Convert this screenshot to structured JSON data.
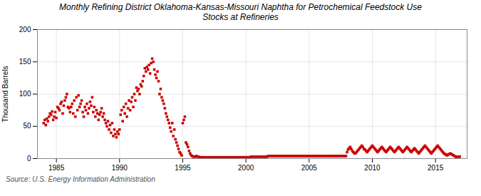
{
  "chart_data": {
    "type": "scatter",
    "title": "Monthly Refining District Oklahoma-Kansas-Missouri Naphtha for Petrochemical Feedstock Use\nStocks at Refineries",
    "ylabel": "Thousand Barrels",
    "source": "Source: U.S. Energy Information Administration",
    "color": "#cc0000",
    "marker": "square",
    "grid": true,
    "xlim": [
      1983.5,
      2017.5
    ],
    "xticks": [
      1985,
      1990,
      1995,
      2000,
      2005,
      2010,
      2015
    ],
    "ylim": [
      0,
      200
    ],
    "yticks": [
      0,
      50,
      100,
      150,
      200
    ],
    "x": [
      1984,
      1984.0833333333,
      1984.1666666667,
      1984.25,
      1984.3333333333,
      1984.4166666667,
      1984.5,
      1984.5833333333,
      1984.6666666667,
      1984.75,
      1984.8333333333,
      1984.9166666667,
      1985,
      1985.0833333333,
      1985.1666666667,
      1985.25,
      1985.3333333333,
      1985.4166666667,
      1985.5,
      1985.5833333333,
      1985.6666666667,
      1985.75,
      1985.8333333333,
      1985.9166666667,
      1986,
      1986.0833333333,
      1986.1666666667,
      1986.25,
      1986.3333333333,
      1986.4166666667,
      1986.5,
      1986.5833333333,
      1986.6666666667,
      1986.75,
      1986.8333333333,
      1986.9166666667,
      1987,
      1987.0833333333,
      1987.1666666667,
      1987.25,
      1987.3333333333,
      1987.4166666667,
      1987.5,
      1987.5833333333,
      1987.6666666667,
      1987.75,
      1987.8333333333,
      1987.9166666667,
      1988,
      1988.0833333333,
      1988.1666666667,
      1988.25,
      1988.3333333333,
      1988.4166666667,
      1988.5,
      1988.5833333333,
      1988.6666666667,
      1988.75,
      1988.8333333333,
      1988.9166666667,
      1989,
      1989.0833333333,
      1989.1666666667,
      1989.25,
      1989.3333333333,
      1989.4166666667,
      1989.5,
      1989.5833333333,
      1989.6666666667,
      1989.75,
      1989.8333333333,
      1989.9166666667,
      1990,
      1990.0833333333,
      1990.1666666667,
      1990.25,
      1990.3333333333,
      1990.4166666667,
      1990.5,
      1990.5833333333,
      1990.6666666667,
      1990.75,
      1990.8333333333,
      1990.9166666667,
      1991,
      1991.0833333333,
      1991.1666666667,
      1991.25,
      1991.3333333333,
      1991.4166666667,
      1991.5,
      1991.5833333333,
      1991.6666666667,
      1991.75,
      1991.8333333333,
      1991.9166666667,
      1992,
      1992.0833333333,
      1992.1666666667,
      1992.25,
      1992.3333333333,
      1992.4166666667,
      1992.5,
      1992.5833333333,
      1992.6666666667,
      1992.75,
      1992.8333333333,
      1992.9166666667,
      1993,
      1993.0833333333,
      1993.1666666667,
      1993.25,
      1993.3333333333,
      1993.4166666667,
      1993.5,
      1993.5833333333,
      1993.6666666667,
      1993.75,
      1993.8333333333,
      1993.9166666667,
      1994,
      1994.0833333333,
      1994.1666666667,
      1994.25,
      1994.3333333333,
      1994.4166666667,
      1994.5,
      1994.5833333333,
      1994.6666666667,
      1994.75,
      1994.8333333333,
      1994.9166666667,
      1995,
      1995.0833333333,
      1995.1666666667,
      1995.25,
      1995.3333333333,
      1995.4166666667,
      1995.5,
      1995.5833333333,
      1995.6666666667,
      1995.75,
      1995.8333333333,
      1995.9166666667,
      1996,
      1996.0833333333,
      1996.1666666667,
      1996.25,
      1996.3333333333,
      1996.4166666667,
      1996.5,
      1996.5833333333,
      1996.6666666667,
      1996.75,
      1996.8333333333,
      1996.9166666667,
      1997,
      1997.0833333333,
      1997.1666666667,
      1997.25,
      1997.3333333333,
      1997.4166666667,
      1997.5,
      1997.5833333333,
      1997.6666666667,
      1997.75,
      1997.8333333333,
      1997.9166666667,
      1998,
      1998.0833333333,
      1998.1666666667,
      1998.25,
      1998.3333333333,
      1998.4166666667,
      1998.5,
      1998.5833333333,
      1998.6666666667,
      1998.75,
      1998.8333333333,
      1998.9166666667,
      1999,
      1999.0833333333,
      1999.1666666667,
      1999.25,
      1999.3333333333,
      1999.4166666667,
      1999.5,
      1999.5833333333,
      1999.6666666667,
      1999.75,
      1999.8333333333,
      1999.9166666667,
      2000,
      2000.0833333333,
      2000.1666666667,
      2000.25,
      2000.3333333333,
      2000.4166666667,
      2000.5,
      2000.5833333333,
      2000.6666666667,
      2000.75,
      2000.8333333333,
      2000.9166666667,
      2001,
      2001.0833333333,
      2001.1666666667,
      2001.25,
      2001.3333333333,
      2001.4166666667,
      2001.5,
      2001.5833333333,
      2001.6666666667,
      2001.75,
      2001.8333333333,
      2001.9166666667,
      2002,
      2002.0833333333,
      2002.1666666667,
      2002.25,
      2002.3333333333,
      2002.4166666667,
      2002.5,
      2002.5833333333,
      2002.6666666667,
      2002.75,
      2002.8333333333,
      2002.9166666667,
      2003,
      2003.0833333333,
      2003.1666666667,
      2003.25,
      2003.3333333333,
      2003.4166666667,
      2003.5,
      2003.5833333333,
      2003.6666666667,
      2003.75,
      2003.8333333333,
      2003.9166666667,
      2004,
      2004.0833333333,
      2004.1666666667,
      2004.25,
      2004.3333333333,
      2004.4166666667,
      2004.5,
      2004.5833333333,
      2004.6666666667,
      2004.75,
      2004.8333333333,
      2004.9166666667,
      2005,
      2005.0833333333,
      2005.1666666667,
      2005.25,
      2005.3333333333,
      2005.4166666667,
      2005.5,
      2005.5833333333,
      2005.6666666667,
      2005.75,
      2005.8333333333,
      2005.9166666667,
      2006,
      2006.0833333333,
      2006.1666666667,
      2006.25,
      2006.3333333333,
      2006.4166666667,
      2006.5,
      2006.5833333333,
      2006.6666666667,
      2006.75,
      2006.8333333333,
      2006.9166666667,
      2007,
      2007.0833333333,
      2007.1666666667,
      2007.25,
      2007.3333333333,
      2007.4166666667,
      2007.5,
      2007.5833333333,
      2007.6666666667,
      2007.75,
      2007.8333333333,
      2007.9166666667,
      2008,
      2008.0833333333,
      2008.1666666667,
      2008.25,
      2008.3333333333,
      2008.4166666667,
      2008.5,
      2008.5833333333,
      2008.6666666667,
      2008.75,
      2008.8333333333,
      2008.9166666667,
      2009,
      2009.0833333333,
      2009.1666666667,
      2009.25,
      2009.3333333333,
      2009.4166666667,
      2009.5,
      2009.5833333333,
      2009.6666666667,
      2009.75,
      2009.8333333333,
      2009.9166666667,
      2010,
      2010.0833333333,
      2010.1666666667,
      2010.25,
      2010.3333333333,
      2010.4166666667,
      2010.5,
      2010.5833333333,
      2010.6666666667,
      2010.75,
      2010.8333333333,
      2010.9166666667,
      2011,
      2011.0833333333,
      2011.1666666667,
      2011.25,
      2011.3333333333,
      2011.4166666667,
      2011.5,
      2011.5833333333,
      2011.6666666667,
      2011.75,
      2011.8333333333,
      2011.9166666667,
      2012,
      2012.0833333333,
      2012.1666666667,
      2012.25,
      2012.3333333333,
      2012.4166666667,
      2012.5,
      2012.5833333333,
      2012.6666666667,
      2012.75,
      2012.8333333333,
      2012.9166666667,
      2013,
      2013.0833333333,
      2013.1666666667,
      2013.25,
      2013.3333333333,
      2013.4166666667,
      2013.5,
      2013.5833333333,
      2013.6666666667,
      2013.75,
      2013.8333333333,
      2013.9166666667,
      2014,
      2014.0833333333,
      2014.1666666667,
      2014.25,
      2014.3333333333,
      2014.4166666667,
      2014.5,
      2014.5833333333,
      2014.6666666667,
      2014.75,
      2014.8333333333,
      2014.9166666667,
      2015,
      2015.0833333333,
      2015.1666666667,
      2015.25,
      2015.3333333333,
      2015.4166666667,
      2015.5,
      2015.5833333333,
      2015.6666666667,
      2015.75,
      2015.8333333333,
      2015.9166666667,
      2016,
      2016.0833333333,
      2016.1666666667,
      2016.25,
      2016.3333333333,
      2016.4166666667,
      2016.5,
      2016.5833333333,
      2016.6666666667,
      2016.75,
      2016.8333333333,
      2016.9166666667
    ],
    "values": [
      55,
      60,
      52,
      62,
      58,
      65,
      70,
      68,
      73,
      60,
      65,
      72,
      63,
      80,
      78,
      75,
      85,
      88,
      70,
      82,
      90,
      95,
      100,
      80,
      78,
      72,
      80,
      85,
      70,
      90,
      65,
      95,
      75,
      98,
      80,
      85,
      90,
      72,
      65,
      80,
      75,
      85,
      70,
      78,
      88,
      82,
      95,
      72,
      80,
      65,
      75,
      70,
      60,
      68,
      72,
      78,
      65,
      70,
      60,
      55,
      50,
      58,
      45,
      52,
      40,
      55,
      35,
      45,
      38,
      33,
      42,
      38,
      45,
      68,
      75,
      58,
      80,
      70,
      85,
      65,
      78,
      90,
      75,
      88,
      95,
      80,
      100,
      90,
      110,
      105,
      108,
      100,
      115,
      112,
      120,
      128,
      140,
      135,
      142,
      138,
      145,
      132,
      148,
      155,
      150,
      138,
      130,
      125,
      135,
      120,
      100,
      108,
      95,
      90,
      85,
      78,
      70,
      65,
      60,
      55,
      48,
      42,
      55,
      35,
      45,
      30,
      25,
      20,
      15,
      10,
      8,
      5,
      55,
      60,
      65,
      25,
      22,
      18,
      12,
      8,
      5,
      4,
      3,
      3,
      3,
      4,
      3,
      3,
      2,
      2,
      2,
      2,
      2,
      2,
      2,
      1,
      2,
      2,
      2,
      2,
      2,
      2,
      2,
      2,
      2,
      2,
      2,
      2,
      2,
      2,
      2,
      2,
      2,
      2,
      2,
      2,
      2,
      2,
      2,
      2,
      2,
      2,
      2,
      2,
      2,
      2,
      2,
      2,
      2,
      2,
      2,
      2,
      2,
      2,
      2,
      2,
      2,
      3,
      3,
      3,
      3,
      3,
      3,
      3,
      3,
      3,
      3,
      3,
      3,
      3,
      3,
      3,
      3,
      4,
      4,
      4,
      4,
      4,
      4,
      4,
      4,
      4,
      4,
      4,
      4,
      4,
      4,
      4,
      4,
      4,
      4,
      4,
      4,
      4,
      4,
      4,
      4,
      4,
      4,
      4,
      4,
      4,
      4,
      4,
      4,
      4,
      4,
      4,
      4,
      4,
      4,
      4,
      4,
      4,
      4,
      4,
      4,
      4,
      4,
      4,
      4,
      4,
      4,
      4,
      4,
      4,
      4,
      4,
      4,
      4,
      4,
      4,
      4,
      4,
      4,
      4,
      4,
      4,
      4,
      4,
      4,
      4,
      4,
      4,
      4,
      4,
      4,
      4,
      10,
      14,
      16,
      18,
      15,
      12,
      10,
      8,
      8,
      10,
      12,
      14,
      16,
      18,
      20,
      18,
      15,
      14,
      12,
      10,
      12,
      14,
      16,
      18,
      20,
      18,
      16,
      14,
      12,
      10,
      12,
      14,
      16,
      18,
      16,
      14,
      12,
      10,
      12,
      14,
      16,
      18,
      16,
      14,
      12,
      10,
      12,
      14,
      16,
      18,
      16,
      14,
      12,
      10,
      12,
      14,
      16,
      18,
      16,
      14,
      12,
      10,
      12,
      14,
      16,
      14,
      12,
      10,
      8,
      10,
      12,
      14,
      16,
      18,
      20,
      18,
      16,
      14,
      12,
      10,
      8,
      10,
      12,
      14,
      16,
      18,
      20,
      18,
      16,
      14,
      12,
      10,
      8,
      7,
      6,
      5,
      6,
      7,
      8,
      7,
      6,
      5,
      4,
      3,
      3,
      3,
      3,
      3
    ]
  }
}
